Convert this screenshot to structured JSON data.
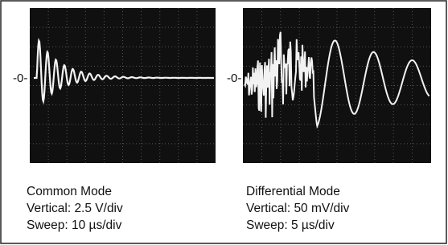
{
  "panels": [
    {
      "zero_marker": "-0-",
      "caption": [
        "Common Mode",
        "Vertical: 2.5 V/div",
        "Sweep: 10 µs/div"
      ]
    },
    {
      "zero_marker": "-0-",
      "caption": [
        "Differential Mode",
        "Vertical: 50 mV/div",
        "Sweep: 5 µs/div"
      ]
    }
  ]
}
